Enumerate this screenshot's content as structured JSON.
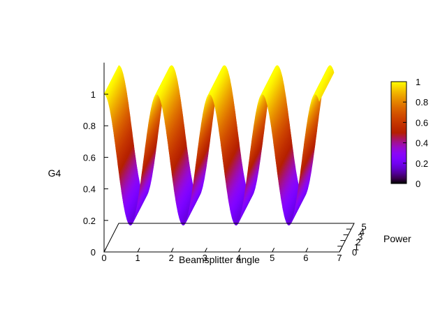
{
  "chart_data": {
    "type": "surface3d",
    "title": "",
    "xlabel": "Beamsplitter angle",
    "ylabel": "Power",
    "zlabel": "G4",
    "xlim": [
      0,
      7
    ],
    "ylim": [
      0,
      5
    ],
    "zlim": [
      0,
      1.2
    ],
    "x_ticks": [
      0,
      1,
      2,
      3,
      4,
      5,
      6,
      7
    ],
    "y_ticks": [
      0,
      1,
      2,
      3,
      4,
      5
    ],
    "z_ticks": [
      0,
      0.2,
      0.4,
      0.6,
      0.8,
      1
    ],
    "colorbar_ticks": [
      0,
      0.2,
      0.4,
      0.6,
      0.8,
      1
    ],
    "colorbar_range": [
      0,
      1
    ],
    "palette": "gnuplot pm3d (black-purple-red-orange-yellow)",
    "surface": {
      "function": "G4 = 1 - 0.83 * sin^2(2 * angle)",
      "maxima_angles": [
        0,
        1.571,
        3.142,
        4.712,
        6.283
      ],
      "minima_angles": [
        0.785,
        2.356,
        3.927,
        5.498
      ],
      "min_value": 0.17,
      "max_value": 1.0,
      "angle_range": [
        0,
        6.4
      ]
    },
    "grid": false,
    "legend": "none",
    "colorbar_placement": "right"
  }
}
